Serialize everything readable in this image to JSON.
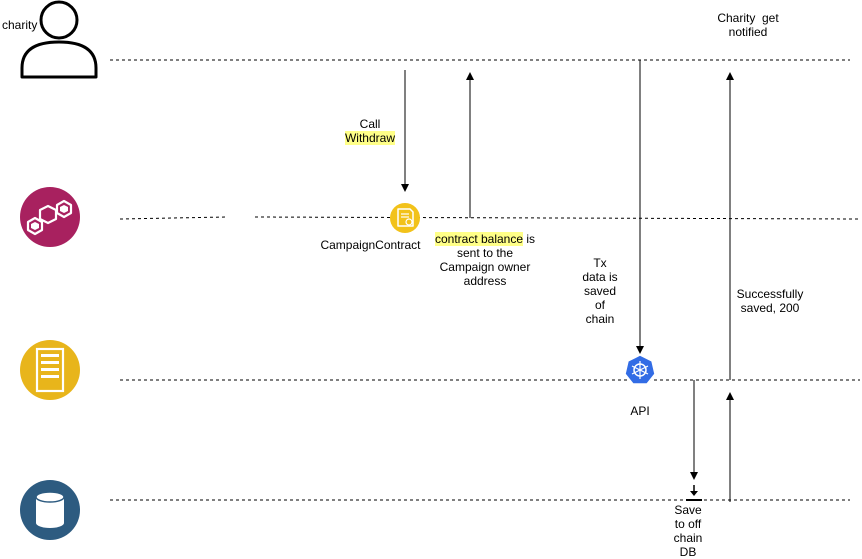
{
  "colors": {
    "blockchain_actor": "#a8215f",
    "server_actor": "#e8b51b",
    "database_actor": "#2d5b80",
    "contract_icon": "#f2c21a",
    "api_icon": "#326ce5",
    "highlight": "#ffff88"
  },
  "icons": {
    "charity": "person-outline-icon",
    "blockchain": "blockchain-cubes-icon",
    "server": "server-icon",
    "database": "database-icon",
    "contract": "smart-contract-icon",
    "api": "kubernetes-helm-icon"
  },
  "labels": {
    "charity": "charity",
    "call_line1": "Call",
    "call_line2": "Withdraw",
    "campaign_contract": "CampaignContract",
    "balance_highlight": "contract balance",
    "balance_rest1": " is",
    "balance_line2": "sent to the",
    "balance_line3": "Campaign owner",
    "balance_line4": "address",
    "tx_lines": [
      "Tx",
      "data is",
      "saved",
      "of",
      "chain"
    ],
    "api": "API",
    "save_lines": [
      "Save",
      "to off",
      "chain",
      "DB"
    ],
    "success_line1": "Successfully",
    "success_line2": "saved, 200",
    "notified_line1": "Charity  get",
    "notified_line2": "notified"
  }
}
